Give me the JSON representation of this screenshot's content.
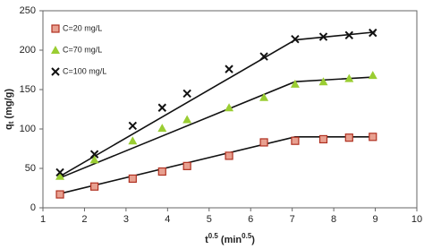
{
  "chart_data": {
    "type": "scatter",
    "xlabel": [
      "t",
      "0.5",
      " (min",
      "0.5",
      ")"
    ],
    "ylabel": [
      "q",
      "t",
      " (mg/g)"
    ],
    "xlim": [
      1,
      10
    ],
    "xticks": [
      1,
      2,
      3,
      4,
      5,
      6,
      7,
      8,
      9,
      10
    ],
    "ylim": [
      0,
      250
    ],
    "yticks": [
      0,
      50,
      100,
      150,
      200,
      250
    ],
    "grid": false,
    "legend": "upper-left",
    "x": [
      1.41,
      2.24,
      3.16,
      3.87,
      4.47,
      5.48,
      6.32,
      7.07,
      7.75,
      8.37,
      8.94
    ],
    "series": [
      {
        "name": "C=20 mg/L",
        "marker": "square",
        "color": "#e8a090",
        "values": [
          17,
          27,
          37,
          46,
          53,
          66,
          83,
          85,
          87,
          89,
          90
        ]
      },
      {
        "name": "C=70 mg/L",
        "marker": "triangle",
        "color": "#9acd32",
        "values": [
          40,
          61,
          85,
          101,
          112,
          127,
          140,
          157,
          160,
          164,
          168
        ]
      },
      {
        "name": "C=100 mg/L",
        "marker": "cross",
        "color": "#111111",
        "values": [
          45,
          68,
          104,
          127,
          145,
          176,
          192,
          214,
          217,
          219,
          222
        ]
      }
    ],
    "lines": [
      {
        "color": "#111111",
        "x": [
          1.41,
          7.07,
          9
        ],
        "values": [
          18,
          90,
          90
        ]
      },
      {
        "color": "#111111",
        "x": [
          1.41,
          7.07,
          9
        ],
        "values": [
          38,
          160,
          166
        ]
      },
      {
        "color": "#111111",
        "x": [
          1.41,
          7.07,
          9
        ],
        "values": [
          40,
          213,
          223
        ]
      }
    ]
  }
}
